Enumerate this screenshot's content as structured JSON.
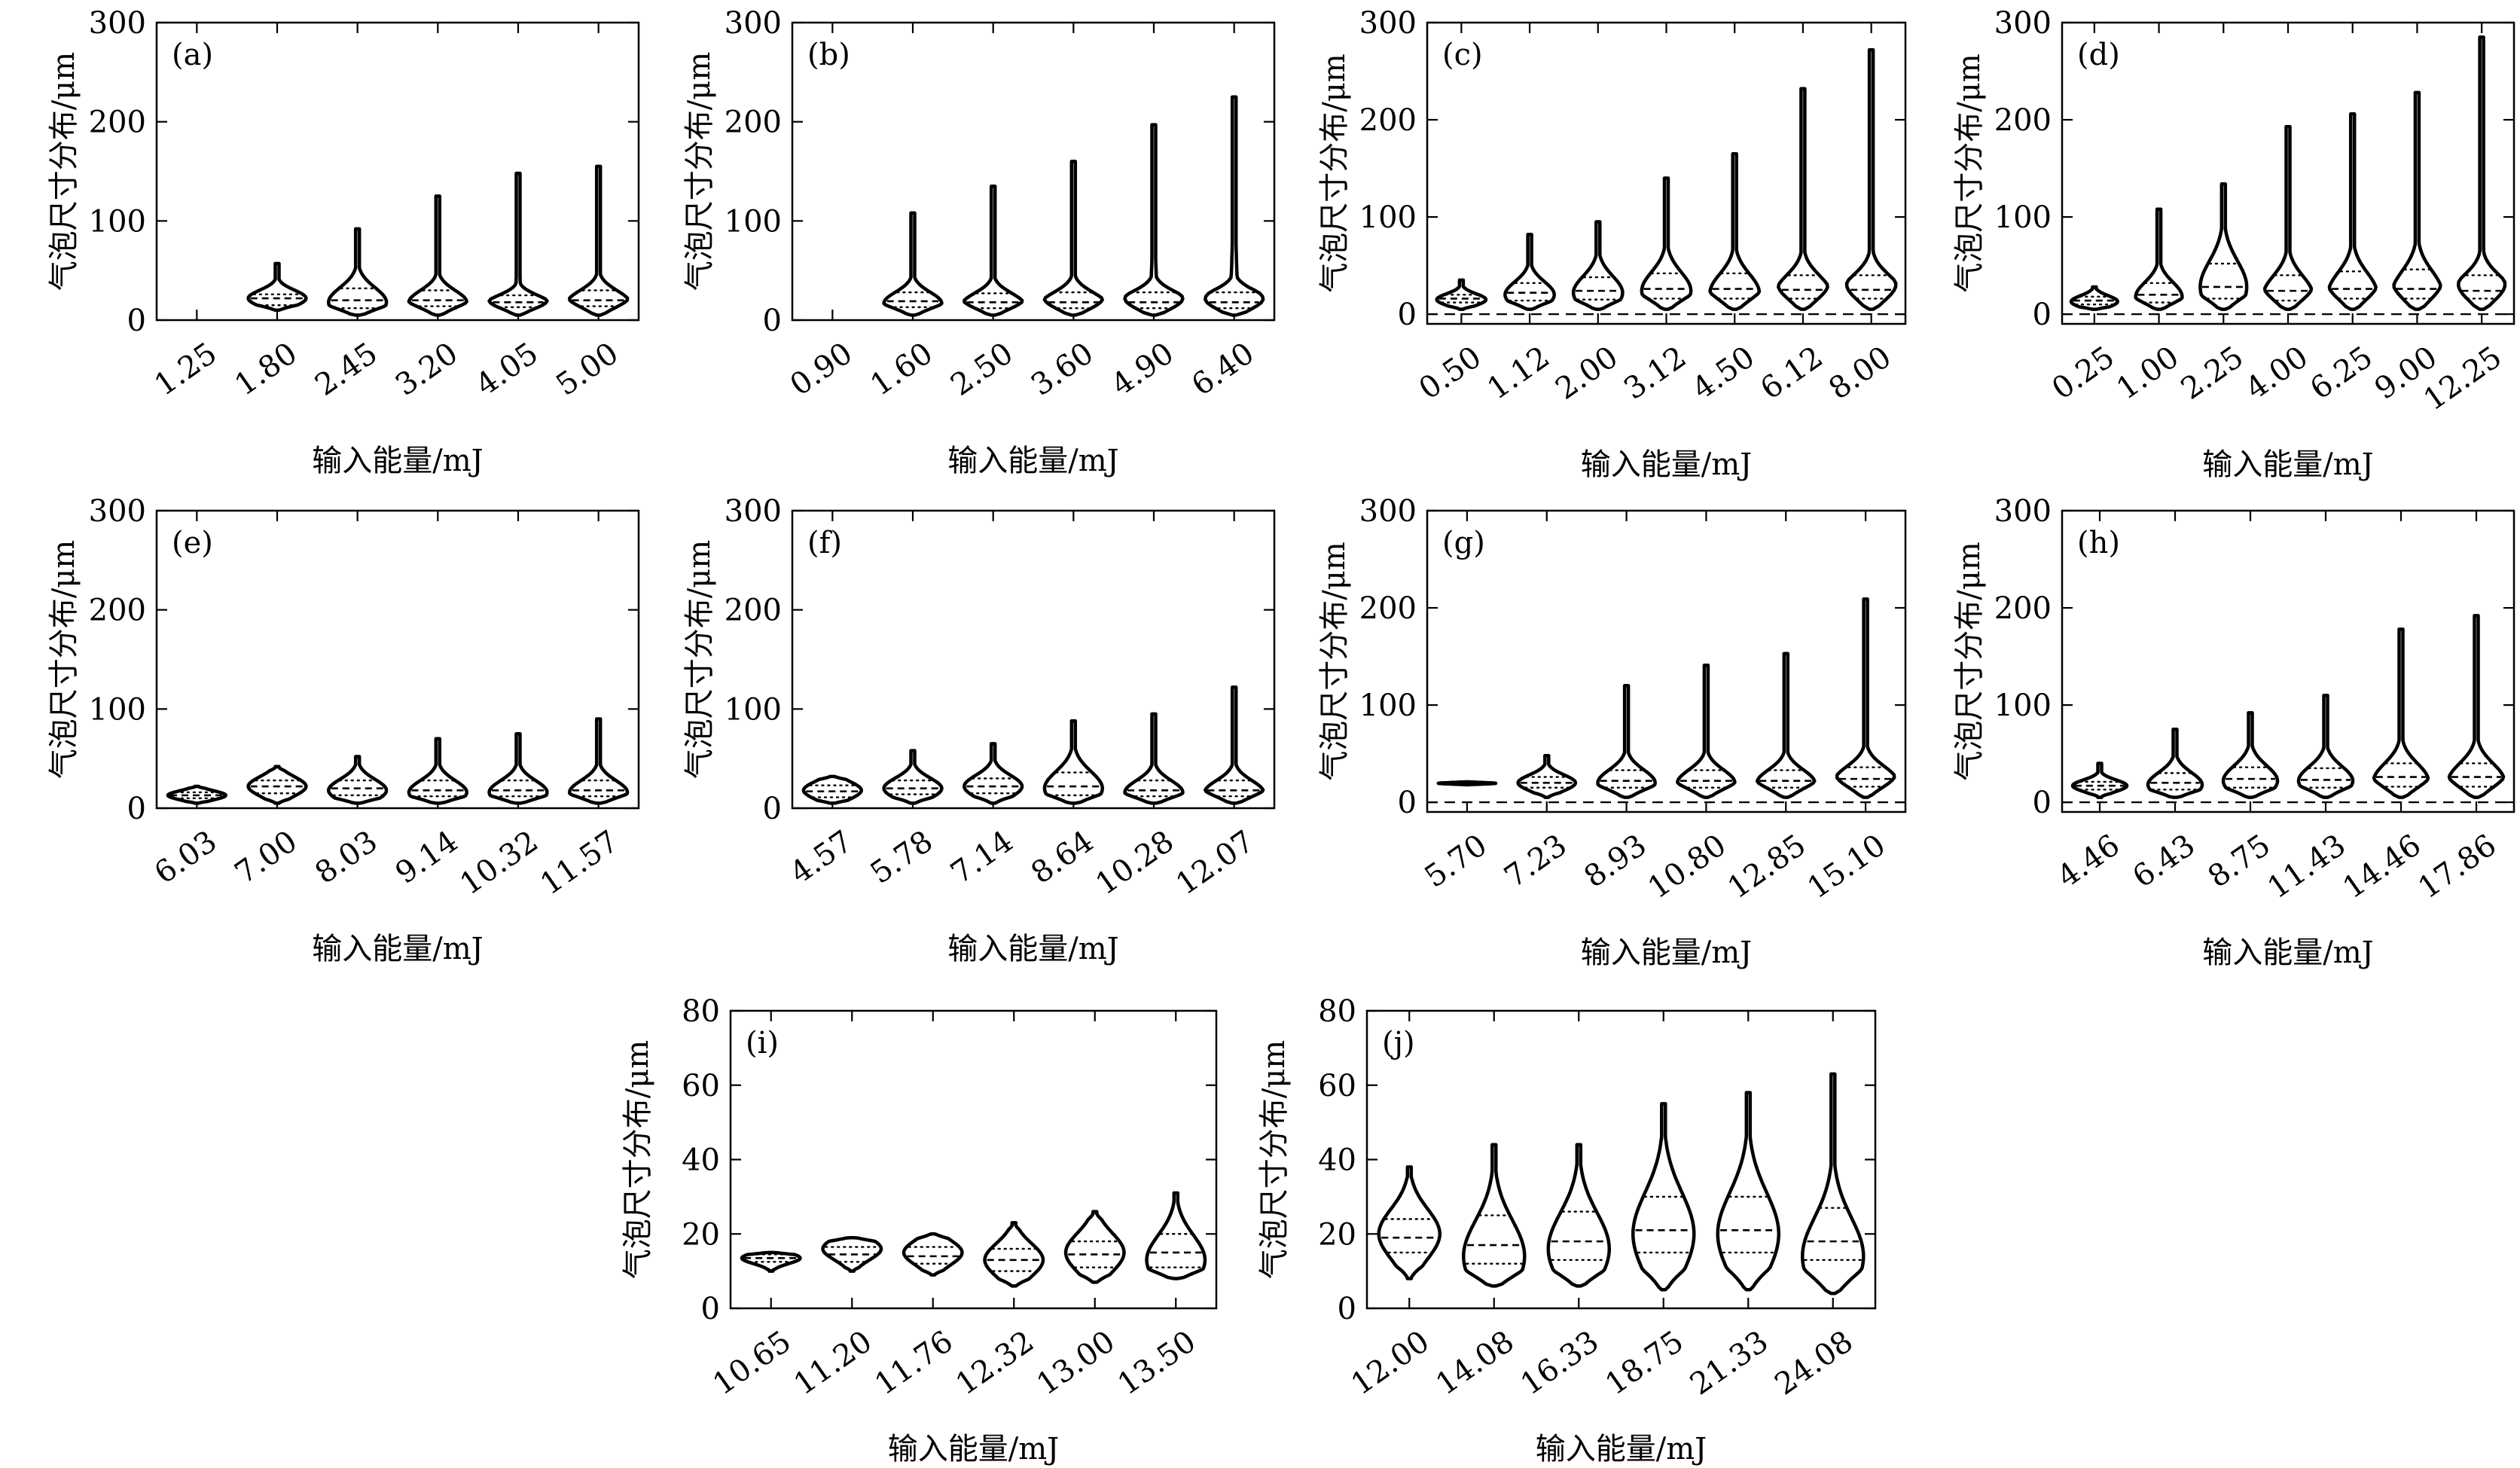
{
  "figure": {
    "ylabel": "气泡尺寸分布/μm",
    "xlabel": "输入能量/mJ"
  },
  "chart_data": [
    {
      "panel_label": "(a)",
      "type": "violin",
      "xlabel": "输入能量/mJ",
      "ylabel": "气泡尺寸分布/μm",
      "categories": [
        "1.25",
        "1.80",
        "2.45",
        "3.20",
        "4.05",
        "5.00"
      ],
      "ylim": [
        0,
        300
      ],
      "yticks": [
        0,
        100,
        200,
        300
      ],
      "zero_dashed_line": false,
      "violins": [
        null,
        {
          "min": 10,
          "max": 57,
          "q1": 15,
          "median": 22,
          "q3": 26,
          "mode": 22
        },
        {
          "min": 5,
          "max": 92,
          "q1": 12,
          "median": 20,
          "q3": 32,
          "mode": 18
        },
        {
          "min": 5,
          "max": 125,
          "q1": 14,
          "median": 20,
          "q3": 30,
          "mode": 18
        },
        {
          "min": 5,
          "max": 148,
          "q1": 13,
          "median": 18,
          "q3": 25,
          "mode": 16
        },
        {
          "min": 5,
          "max": 155,
          "q1": 14,
          "median": 20,
          "q3": 30,
          "mode": 18
        }
      ]
    },
    {
      "panel_label": "(b)",
      "type": "violin",
      "xlabel": "输入能量/mJ",
      "ylabel": "气泡尺寸分布/μm",
      "categories": [
        "0.90",
        "1.60",
        "2.50",
        "3.60",
        "4.90",
        "6.40"
      ],
      "ylim": [
        0,
        300
      ],
      "yticks": [
        0,
        100,
        200,
        300
      ],
      "zero_dashed_line": false,
      "violins": [
        null,
        {
          "min": 5,
          "max": 108,
          "q1": 13,
          "median": 19,
          "q3": 28,
          "mode": 17
        },
        {
          "min": 5,
          "max": 135,
          "q1": 12,
          "median": 18,
          "q3": 27,
          "mode": 16
        },
        {
          "min": 5,
          "max": 160,
          "q1": 12,
          "median": 18,
          "q3": 28,
          "mode": 16
        },
        {
          "min": 5,
          "max": 197,
          "q1": 12,
          "median": 18,
          "q3": 28,
          "mode": 16
        },
        {
          "min": 5,
          "max": 225,
          "q1": 12,
          "median": 18,
          "q3": 28,
          "mode": 16
        }
      ]
    },
    {
      "panel_label": "(c)",
      "type": "violin",
      "xlabel": "输入能量/mJ",
      "ylabel": "气泡尺寸分布/μm",
      "categories": [
        "0.50",
        "1.12",
        "2.00",
        "3.12",
        "4.50",
        "6.12",
        "8.00"
      ],
      "ylim": [
        -10,
        300
      ],
      "yticks": [
        0,
        100,
        200,
        300
      ],
      "zero_dashed_line": true,
      "violins": [
        {
          "min": 5,
          "max": 35,
          "q1": 12,
          "median": 16,
          "q3": 20,
          "mode": 15
        },
        {
          "min": 5,
          "max": 82,
          "q1": 14,
          "median": 22,
          "q3": 32,
          "mode": 20
        },
        {
          "min": 5,
          "max": 95,
          "q1": 15,
          "median": 24,
          "q3": 38,
          "mode": 22
        },
        {
          "min": 5,
          "max": 140,
          "q1": 16,
          "median": 26,
          "q3": 42,
          "mode": 24
        },
        {
          "min": 5,
          "max": 165,
          "q1": 16,
          "median": 26,
          "q3": 42,
          "mode": 22
        },
        {
          "min": 5,
          "max": 232,
          "q1": 16,
          "median": 25,
          "q3": 40,
          "mode": 22
        },
        {
          "min": 5,
          "max": 272,
          "q1": 16,
          "median": 25,
          "q3": 40,
          "mode": 22
        }
      ]
    },
    {
      "panel_label": "(d)",
      "type": "violin",
      "xlabel": "输入能量/mJ",
      "ylabel": "气泡尺寸分布/μm",
      "categories": [
        "0.25",
        "1.00",
        "2.25",
        "4.00",
        "6.25",
        "9.00",
        "12.25"
      ],
      "ylim": [
        -10,
        300
      ],
      "yticks": [
        0,
        100,
        200,
        300
      ],
      "zero_dashed_line": true,
      "violins": [
        {
          "min": 5,
          "max": 28,
          "q1": 10,
          "median": 14,
          "q3": 18,
          "mode": 13
        },
        {
          "min": 5,
          "max": 108,
          "q1": 12,
          "median": 20,
          "q3": 32,
          "mode": 18
        },
        {
          "min": 5,
          "max": 134,
          "q1": 16,
          "median": 28,
          "q3": 52,
          "mode": 28
        },
        {
          "min": 5,
          "max": 193,
          "q1": 14,
          "median": 24,
          "q3": 40,
          "mode": 20
        },
        {
          "min": 5,
          "max": 206,
          "q1": 16,
          "median": 26,
          "q3": 44,
          "mode": 22
        },
        {
          "min": 5,
          "max": 228,
          "q1": 16,
          "median": 26,
          "q3": 46,
          "mode": 22
        },
        {
          "min": 5,
          "max": 285,
          "q1": 16,
          "median": 24,
          "q3": 40,
          "mode": 22
        }
      ]
    },
    {
      "panel_label": "(e)",
      "type": "violin",
      "xlabel": "输入能量/mJ",
      "ylabel": "气泡尺寸分布/μm",
      "categories": [
        "6.03",
        "7.00",
        "8.03",
        "9.14",
        "10.32",
        "11.57"
      ],
      "ylim": [
        0,
        300
      ],
      "yticks": [
        0,
        100,
        200,
        300
      ],
      "zero_dashed_line": false,
      "violins": [
        {
          "min": 5,
          "max": 22,
          "q1": 10,
          "median": 13,
          "q3": 16,
          "mode": 13
        },
        {
          "min": 5,
          "max": 42,
          "q1": 15,
          "median": 22,
          "q3": 28,
          "mode": 22
        },
        {
          "min": 5,
          "max": 52,
          "q1": 13,
          "median": 20,
          "q3": 28,
          "mode": 18
        },
        {
          "min": 5,
          "max": 70,
          "q1": 12,
          "median": 18,
          "q3": 28,
          "mode": 16
        },
        {
          "min": 5,
          "max": 75,
          "q1": 12,
          "median": 18,
          "q3": 28,
          "mode": 16
        },
        {
          "min": 5,
          "max": 90,
          "q1": 12,
          "median": 18,
          "q3": 28,
          "mode": 16
        }
      ]
    },
    {
      "panel_label": "(f)",
      "type": "violin",
      "xlabel": "输入能量/mJ",
      "ylabel": "气泡尺寸分布/μm",
      "categories": [
        "4.57",
        "5.78",
        "7.14",
        "8.64",
        "10.28",
        "12.07"
      ],
      "ylim": [
        0,
        300
      ],
      "yticks": [
        0,
        100,
        200,
        300
      ],
      "zero_dashed_line": false,
      "violins": [
        {
          "min": 5,
          "max": 32,
          "q1": 11,
          "median": 17,
          "q3": 23,
          "mode": 18
        },
        {
          "min": 5,
          "max": 58,
          "q1": 14,
          "median": 20,
          "q3": 28,
          "mode": 20
        },
        {
          "min": 5,
          "max": 65,
          "q1": 15,
          "median": 22,
          "q3": 30,
          "mode": 22
        },
        {
          "min": 5,
          "max": 88,
          "q1": 13,
          "median": 22,
          "q3": 36,
          "mode": 20
        },
        {
          "min": 5,
          "max": 95,
          "q1": 12,
          "median": 18,
          "q3": 28,
          "mode": 16
        },
        {
          "min": 5,
          "max": 122,
          "q1": 12,
          "median": 18,
          "q3": 28,
          "mode": 16
        }
      ]
    },
    {
      "panel_label": "(g)",
      "type": "violin",
      "xlabel": "输入能量/mJ",
      "ylabel": "气泡尺寸分布/μm",
      "categories": [
        "5.70",
        "7.23",
        "8.93",
        "10.80",
        "12.85",
        "15.10"
      ],
      "ylim": [
        -10,
        300
      ],
      "yticks": [
        0,
        100,
        200,
        300
      ],
      "zero_dashed_line": true,
      "violins": [
        {
          "min": 18,
          "max": 21,
          "q1": 19,
          "median": 19.5,
          "q3": 20,
          "mode": 19.5
        },
        {
          "min": 5,
          "max": 48,
          "q1": 15,
          "median": 20,
          "q3": 26,
          "mode": 20
        },
        {
          "min": 5,
          "max": 120,
          "q1": 15,
          "median": 22,
          "q3": 33,
          "mode": 20
        },
        {
          "min": 5,
          "max": 141,
          "q1": 15,
          "median": 22,
          "q3": 33,
          "mode": 20
        },
        {
          "min": 5,
          "max": 153,
          "q1": 15,
          "median": 22,
          "q3": 33,
          "mode": 20
        },
        {
          "min": 5,
          "max": 209,
          "q1": 16,
          "median": 24,
          "q3": 36,
          "mode": 22
        }
      ]
    },
    {
      "panel_label": "(h)",
      "type": "violin",
      "xlabel": "输入能量/mJ",
      "ylabel": "气泡尺寸分布/μm",
      "categories": [
        "4.46",
        "6.43",
        "8.75",
        "11.43",
        "14.46",
        "17.86"
      ],
      "ylim": [
        -10,
        300
      ],
      "yticks": [
        0,
        100,
        200,
        300
      ],
      "zero_dashed_line": true,
      "violins": [
        {
          "min": 5,
          "max": 40,
          "q1": 13,
          "median": 17,
          "q3": 21,
          "mode": 17
        },
        {
          "min": 5,
          "max": 75,
          "q1": 13,
          "median": 20,
          "q3": 30,
          "mode": 18
        },
        {
          "min": 5,
          "max": 92,
          "q1": 15,
          "median": 24,
          "q3": 36,
          "mode": 22
        },
        {
          "min": 5,
          "max": 110,
          "q1": 15,
          "median": 23,
          "q3": 35,
          "mode": 22
        },
        {
          "min": 5,
          "max": 178,
          "q1": 16,
          "median": 26,
          "q3": 40,
          "mode": 22
        },
        {
          "min": 5,
          "max": 192,
          "q1": 16,
          "median": 26,
          "q3": 40,
          "mode": 22
        }
      ]
    },
    {
      "panel_label": "(i)",
      "type": "violin",
      "xlabel": "输入能量/mJ",
      "ylabel": "气泡尺寸分布/μm",
      "categories": [
        "10.65",
        "11.20",
        "11.76",
        "12.32",
        "13.00",
        "13.50"
      ],
      "ylim": [
        0,
        80
      ],
      "yticks": [
        0,
        20,
        40,
        60,
        80
      ],
      "zero_dashed_line": false,
      "violins": [
        {
          "min": 10,
          "max": 15,
          "q1": 12.5,
          "median": 13.5,
          "q3": 14.5,
          "mode": 13.5
        },
        {
          "min": 10,
          "max": 19,
          "q1": 12.5,
          "median": 14.5,
          "q3": 16.5,
          "mode": 16
        },
        {
          "min": 9,
          "max": 20,
          "q1": 12,
          "median": 14,
          "q3": 16.5,
          "mode": 15
        },
        {
          "min": 6,
          "max": 23,
          "q1": 10,
          "median": 13,
          "q3": 16,
          "mode": 13
        },
        {
          "min": 7,
          "max": 26,
          "q1": 11,
          "median": 14.5,
          "q3": 18,
          "mode": 15
        },
        {
          "min": 8,
          "max": 31,
          "q1": 11,
          "median": 15,
          "q3": 20,
          "mode": 13
        }
      ]
    },
    {
      "panel_label": "(j)",
      "type": "violin",
      "xlabel": "输入能量/mJ",
      "ylabel": "气泡尺寸分布/μm",
      "categories": [
        "12.00",
        "14.08",
        "16.33",
        "18.75",
        "21.33",
        "24.08"
      ],
      "ylim": [
        0,
        80
      ],
      "yticks": [
        0,
        20,
        40,
        60,
        80
      ],
      "zero_dashed_line": false,
      "violins": [
        {
          "min": 8,
          "max": 38,
          "q1": 15,
          "median": 19,
          "q3": 24,
          "mode": 20
        },
        {
          "min": 6,
          "max": 44,
          "q1": 12,
          "median": 17,
          "q3": 25,
          "mode": 14
        },
        {
          "min": 6,
          "max": 44,
          "q1": 13,
          "median": 18,
          "q3": 26,
          "mode": 16
        },
        {
          "min": 5,
          "max": 55,
          "q1": 15,
          "median": 21,
          "q3": 30,
          "mode": 20
        },
        {
          "min": 5,
          "max": 58,
          "q1": 15,
          "median": 21,
          "q3": 30,
          "mode": 20
        },
        {
          "min": 4,
          "max": 63,
          "q1": 13,
          "median": 18,
          "q3": 27,
          "mode": 14
        }
      ]
    }
  ]
}
